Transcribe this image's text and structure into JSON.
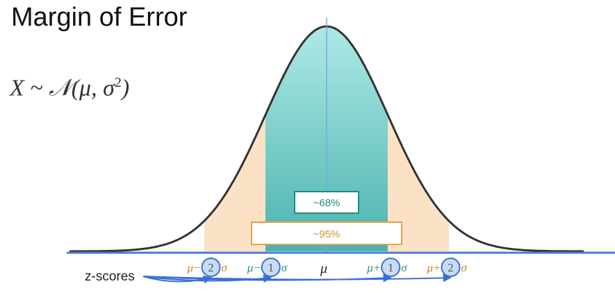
{
  "title": "Margin of Error",
  "formula": {
    "prefix": "X ~ 𝒩(μ, σ",
    "exponent": "2",
    "suffix": ")"
  },
  "bands": {
    "inner_label": "~68%",
    "outer_label": "~95%",
    "inner_color": "#5fc4c0",
    "outer_color": "#fbe1c6"
  },
  "axis": {
    "mean_label": "μ",
    "z_scores_label": "z-scores",
    "ticks": [
      {
        "prefix": "μ−",
        "number": "2",
        "suffix": "σ",
        "z": -2
      },
      {
        "prefix": "μ−",
        "number": "1",
        "suffix": "σ",
        "z": -1
      },
      {
        "prefix": "μ+",
        "number": "1",
        "suffix": "σ",
        "z": 1
      },
      {
        "prefix": "μ+",
        "number": "2",
        "suffix": "σ",
        "z": 2
      }
    ]
  },
  "colors": {
    "axis_line": "#4a78d8",
    "curve": "#333333",
    "inner_label_border": "#1e8a86",
    "outer_label_border": "#e3a24a",
    "tick_text": "#c98438",
    "arrow": "#3b6fd6"
  }
}
